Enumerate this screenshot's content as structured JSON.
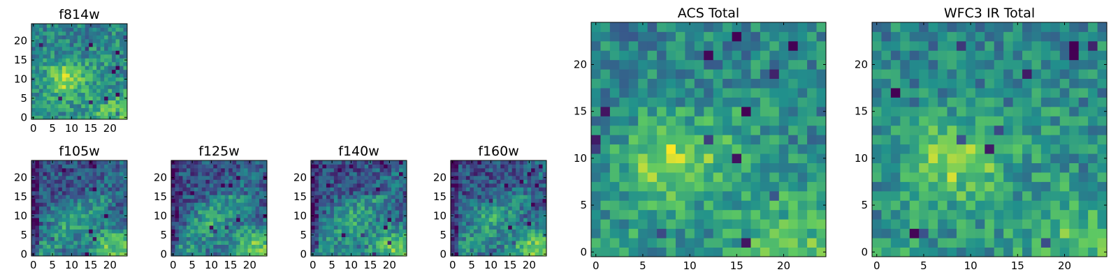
{
  "colormap": [
    "#440154",
    "#3b528b",
    "#21918c",
    "#5ec962",
    "#fde725"
  ],
  "chart_data": [
    {
      "type": "heatmap",
      "title": "f814w",
      "xlim": [
        0,
        25
      ],
      "ylim": [
        0,
        25
      ],
      "xticks": [
        0,
        5,
        10,
        15,
        20
      ],
      "yticks": [
        0,
        5,
        10,
        15,
        20
      ],
      "grid_size": 25,
      "value_range": [
        0,
        1
      ],
      "bright_region": "center-left and lower-right"
    },
    {
      "type": "heatmap",
      "title": "f105w",
      "xlim": [
        0,
        25
      ],
      "ylim": [
        0,
        25
      ],
      "xticks": [
        0,
        5,
        10,
        15,
        20
      ],
      "yticks": [
        0,
        5,
        10,
        15,
        20
      ],
      "grid_size": 25,
      "value_range": [
        0,
        1
      ],
      "bright_region": "lower-right"
    },
    {
      "type": "heatmap",
      "title": "f125w",
      "xlim": [
        0,
        25
      ],
      "ylim": [
        0,
        25
      ],
      "xticks": [
        0,
        5,
        10,
        15,
        20
      ],
      "yticks": [
        0,
        5,
        10,
        15,
        20
      ],
      "grid_size": 25,
      "value_range": [
        0,
        1
      ],
      "bright_region": "lower-right"
    },
    {
      "type": "heatmap",
      "title": "f140w",
      "xlim": [
        0,
        25
      ],
      "ylim": [
        0,
        25
      ],
      "xticks": [
        0,
        5,
        10,
        15,
        20
      ],
      "yticks": [
        0,
        5,
        10,
        15,
        20
      ],
      "grid_size": 25,
      "value_range": [
        0,
        1
      ],
      "bright_region": "lower-right"
    },
    {
      "type": "heatmap",
      "title": "f160w",
      "xlim": [
        0,
        25
      ],
      "ylim": [
        0,
        25
      ],
      "xticks": [
        0,
        5,
        10,
        15,
        20
      ],
      "yticks": [
        0,
        5,
        10,
        15,
        20
      ],
      "grid_size": 25,
      "value_range": [
        0,
        1
      ],
      "bright_region": "lower-right"
    },
    {
      "type": "heatmap",
      "title": "ACS Total",
      "xlim": [
        0,
        25
      ],
      "ylim": [
        0,
        25
      ],
      "xticks": [
        0,
        5,
        10,
        15,
        20
      ],
      "yticks": [
        0,
        5,
        10,
        15,
        20
      ],
      "grid_size": 25,
      "value_range": [
        0,
        1
      ],
      "bright_region": "center-left and lower-right"
    },
    {
      "type": "heatmap",
      "title": "WFC3 IR Total",
      "xlim": [
        0,
        25
      ],
      "ylim": [
        0,
        25
      ],
      "xticks": [
        0,
        5,
        10,
        15,
        20
      ],
      "yticks": [
        0,
        5,
        10,
        15,
        20
      ],
      "grid_size": 25,
      "value_range": [
        0,
        1
      ],
      "bright_region": "center-left and lower-right"
    }
  ]
}
